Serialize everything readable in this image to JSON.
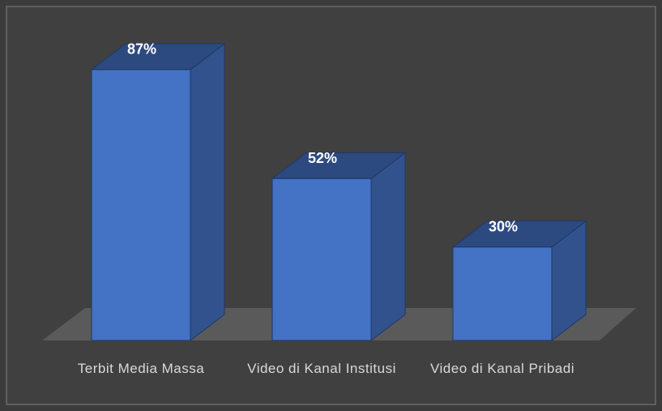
{
  "chart_data": {
    "type": "bar3d",
    "categories": [
      "Terbit Media Massa",
      "Video di Kanal Institusi",
      "Video di Kanal Pribadi"
    ],
    "values": [
      87,
      52,
      30
    ],
    "value_labels": [
      "87%",
      "52%",
      "30%"
    ],
    "color": "#4472c4"
  }
}
